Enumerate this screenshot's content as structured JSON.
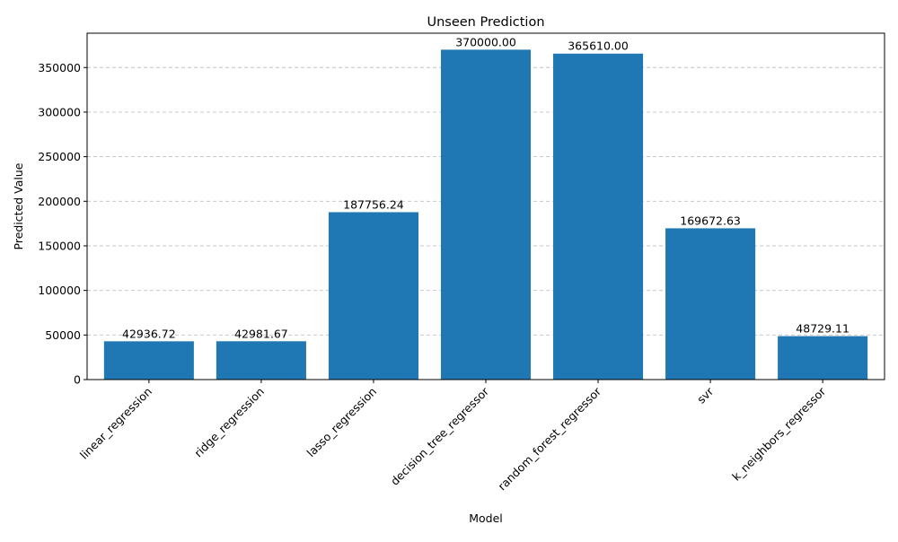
{
  "chart_data": {
    "type": "bar",
    "title": "Unseen Prediction",
    "xlabel": "Model",
    "ylabel": "Predicted Value",
    "categories": [
      "linear_regression",
      "ridge_regression",
      "lasso_regression",
      "decision_tree_regressor",
      "random_forest_regressor",
      "svr",
      "k_neighbors_regressor"
    ],
    "values": [
      42936.72,
      42981.67,
      187756.24,
      370000.0,
      365610.0,
      169672.63,
      48729.11
    ],
    "value_labels": [
      "42936.72",
      "42981.67",
      "187756.24",
      "370000.00",
      "365610.00",
      "169672.63",
      "48729.11"
    ],
    "ylim": [
      0,
      388500
    ],
    "yticks": [
      0,
      50000,
      100000,
      150000,
      200000,
      250000,
      300000,
      350000
    ],
    "ytick_labels": [
      "0",
      "50000",
      "100000",
      "150000",
      "200000",
      "250000",
      "300000",
      "350000"
    ],
    "grid": "y dashed",
    "bar_color": "#1f77b4",
    "grid_color": "#c0c0c0"
  }
}
